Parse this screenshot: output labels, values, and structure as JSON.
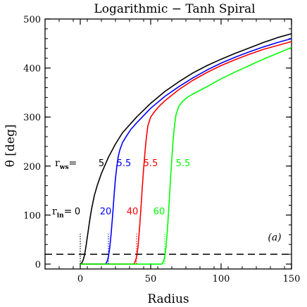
{
  "chart_data": {
    "type": "line",
    "title": "Logarithmic − Tanh Spiral",
    "xlabel": "Radius",
    "ylabel": "θ [deg]",
    "xlim": [
      -25,
      150
    ],
    "ylim": [
      -10,
      500
    ],
    "xticks": [
      0,
      50,
      100,
      150
    ],
    "yticks": [
      0,
      100,
      200,
      300,
      400,
      500
    ],
    "grid": false,
    "series": [
      {
        "color": "#000000",
        "r_in": 0,
        "r_ws": 5,
        "x": [
          0,
          1,
          2,
          3,
          4,
          5,
          6,
          7,
          8,
          10,
          12,
          15,
          20,
          25,
          30,
          40,
          50,
          60,
          70,
          80,
          90,
          100,
          110,
          120,
          130,
          140,
          150
        ],
        "y": [
          0,
          2,
          8,
          18,
          35,
          55,
          75,
          95,
          112,
          140,
          160,
          185,
          218,
          245,
          268,
          300,
          328,
          352,
          372,
          390,
          405,
          418,
          430,
          441,
          452,
          462,
          470
        ]
      },
      {
        "color": "#0000ff",
        "r_in": 20,
        "r_ws": 5.5,
        "x": [
          0,
          10,
          18,
          19,
          20,
          21,
          22,
          23,
          24,
          25,
          26,
          27,
          28,
          30,
          33,
          36,
          40,
          50,
          60,
          70,
          80,
          90,
          100,
          110,
          120,
          130,
          140,
          150
        ],
        "y": [
          0,
          0,
          0,
          5,
          15,
          35,
          65,
          100,
          140,
          175,
          200,
          220,
          232,
          248,
          262,
          275,
          288,
          318,
          342,
          362,
          380,
          396,
          410,
          422,
          433,
          443,
          452,
          460
        ]
      },
      {
        "color": "#ff0000",
        "r_in": 40,
        "r_ws": 5.5,
        "x": [
          0,
          10,
          20,
          30,
          38,
          39,
          40,
          41,
          42,
          43,
          44,
          45,
          46,
          47,
          48,
          50,
          53,
          56,
          60,
          70,
          80,
          90,
          100,
          110,
          120,
          130,
          140,
          150
        ],
        "y": [
          0,
          0,
          0,
          0,
          0,
          5,
          15,
          35,
          70,
          110,
          155,
          195,
          230,
          260,
          282,
          300,
          312,
          322,
          333,
          356,
          375,
          391,
          405,
          417,
          428,
          438,
          446,
          454
        ]
      },
      {
        "color": "#00ff00",
        "r_in": 60,
        "r_ws": 5.5,
        "x": [
          0,
          10,
          20,
          30,
          40,
          50,
          58,
          59,
          60,
          61,
          62,
          63,
          64,
          65,
          66,
          67,
          68,
          70,
          73,
          76,
          80,
          90,
          100,
          110,
          120,
          130,
          140,
          150
        ],
        "y": [
          0,
          0,
          0,
          0,
          0,
          0,
          0,
          5,
          15,
          38,
          75,
          120,
          170,
          215,
          255,
          285,
          305,
          322,
          333,
          340,
          347,
          362,
          378,
          392,
          405,
          418,
          430,
          442
        ]
      }
    ],
    "hline": {
      "y": 20,
      "style": "dashed",
      "color": "#000000"
    },
    "vlines": [
      {
        "x": 0,
        "y_top": 62,
        "color": "#000000"
      },
      {
        "x": 20,
        "y_top": 62,
        "color": "#0000ff"
      },
      {
        "x": 40,
        "y_top": 62,
        "color": "#ff0000"
      },
      {
        "x": 60,
        "y_top": 62,
        "color": "#00ff00"
      }
    ],
    "annotations": {
      "rws_label": "r",
      "rws_sub": "ws",
      "rws_eq": "=",
      "rin_label": "r",
      "rin_sub": "in",
      "rin_eq": "=",
      "panel_label": "(a)",
      "rws_values": [
        {
          "text": "5",
          "x": 15,
          "y": 200,
          "color": "#000000"
        },
        {
          "text": "5.5",
          "x": 31,
          "y": 200,
          "color": "#0000ff"
        },
        {
          "text": "5.5",
          "x": 50,
          "y": 200,
          "color": "#ff0000"
        },
        {
          "text": "5.5",
          "x": 73,
          "y": 200,
          "color": "#00ff00"
        }
      ],
      "rin_values": [
        {
          "text": "0",
          "x": -2,
          "y": 101,
          "color": "#000000"
        },
        {
          "text": "20",
          "x": 18,
          "y": 101,
          "color": "#0000ff"
        },
        {
          "text": "40",
          "x": 37,
          "y": 101,
          "color": "#ff0000"
        },
        {
          "text": "60",
          "x": 56,
          "y": 101,
          "color": "#00ff00"
        }
      ]
    }
  }
}
